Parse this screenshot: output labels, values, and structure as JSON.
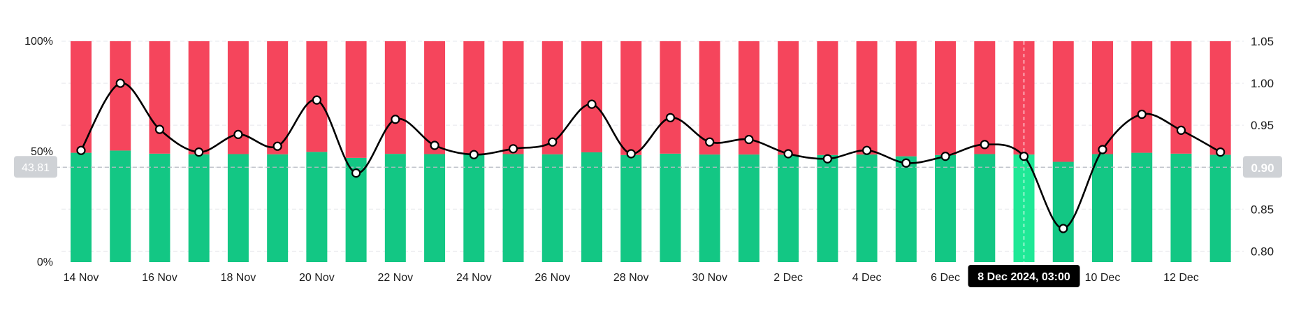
{
  "chart_data": {
    "type": "bar",
    "subtype": "stacked-100-percent-with-line-overlay",
    "categories": [
      "14 Nov",
      "15 Nov",
      "16 Nov",
      "17 Nov",
      "18 Nov",
      "19 Nov",
      "20 Nov",
      "21 Nov",
      "22 Nov",
      "23 Nov",
      "24 Nov",
      "25 Nov",
      "26 Nov",
      "27 Nov",
      "28 Nov",
      "29 Nov",
      "30 Nov",
      "1 Dec",
      "2 Dec",
      "3 Dec",
      "4 Dec",
      "5 Dec",
      "6 Dec",
      "7 Dec",
      "8 Dec",
      "9 Dec",
      "10 Dec",
      "11 Dec",
      "12 Dec",
      "13 Dec"
    ],
    "x_tick_labels": [
      "14 Nov",
      "16 Nov",
      "18 Nov",
      "20 Nov",
      "22 Nov",
      "24 Nov",
      "26 Nov",
      "28 Nov",
      "30 Nov",
      "2 Dec",
      "4 Dec",
      "6 Dec",
      "8 Dec",
      "10 Dec",
      "12 Dec"
    ],
    "series": [
      {
        "name": "",
        "color": "#13c784",
        "axis": "left",
        "values": [
          49.5,
          50.5,
          49.1,
          48.8,
          48.9,
          48.8,
          49.9,
          47.2,
          49.0,
          48.9,
          48.9,
          48.9,
          48.8,
          49.7,
          48.5,
          49.1,
          48.7,
          48.7,
          48.6,
          48.5,
          48.7,
          47.9,
          48.5,
          48.9,
          48.7,
          45.4,
          48.9,
          49.5,
          49.1,
          48.6
        ]
      },
      {
        "name": "",
        "color": "#f5455c",
        "axis": "left",
        "values": [
          50.5,
          49.5,
          50.9,
          51.2,
          51.1,
          51.2,
          50.1,
          52.8,
          51.0,
          51.1,
          51.1,
          51.1,
          51.2,
          50.3,
          51.5,
          50.9,
          51.3,
          51.3,
          51.4,
          51.5,
          51.3,
          52.1,
          51.5,
          51.1,
          51.3,
          54.6,
          51.1,
          50.5,
          50.9,
          51.4
        ]
      },
      {
        "name": "",
        "type": "line",
        "color": "#000000",
        "axis": "right",
        "values": [
          0.92,
          1.0,
          0.945,
          0.918,
          0.939,
          0.925,
          0.98,
          0.893,
          0.957,
          0.926,
          0.915,
          0.922,
          0.93,
          0.975,
          0.916,
          0.959,
          0.93,
          0.933,
          0.916,
          0.91,
          0.92,
          0.905,
          0.913,
          0.927,
          0.913,
          0.827,
          0.921,
          0.963,
          0.944,
          0.918
        ]
      }
    ],
    "left_axis": {
      "ticks": [
        "100%",
        "50%",
        "0%"
      ],
      "ylim": [
        0,
        100
      ]
    },
    "right_axis": {
      "ticks": [
        "1.05",
        "1.00",
        "0.95",
        "0.90",
        "0.85",
        "0.80"
      ],
      "ylim": [
        0.787,
        1.05
      ]
    },
    "reference_lines": {
      "left_value": 43.81,
      "left_label": "43.81",
      "right_value": 0.9,
      "right_label": "0.90"
    },
    "highlighted_index": 24,
    "tooltip": {
      "text": "8 Dec 2024, 03:00"
    },
    "grid": true,
    "legend": "none"
  }
}
